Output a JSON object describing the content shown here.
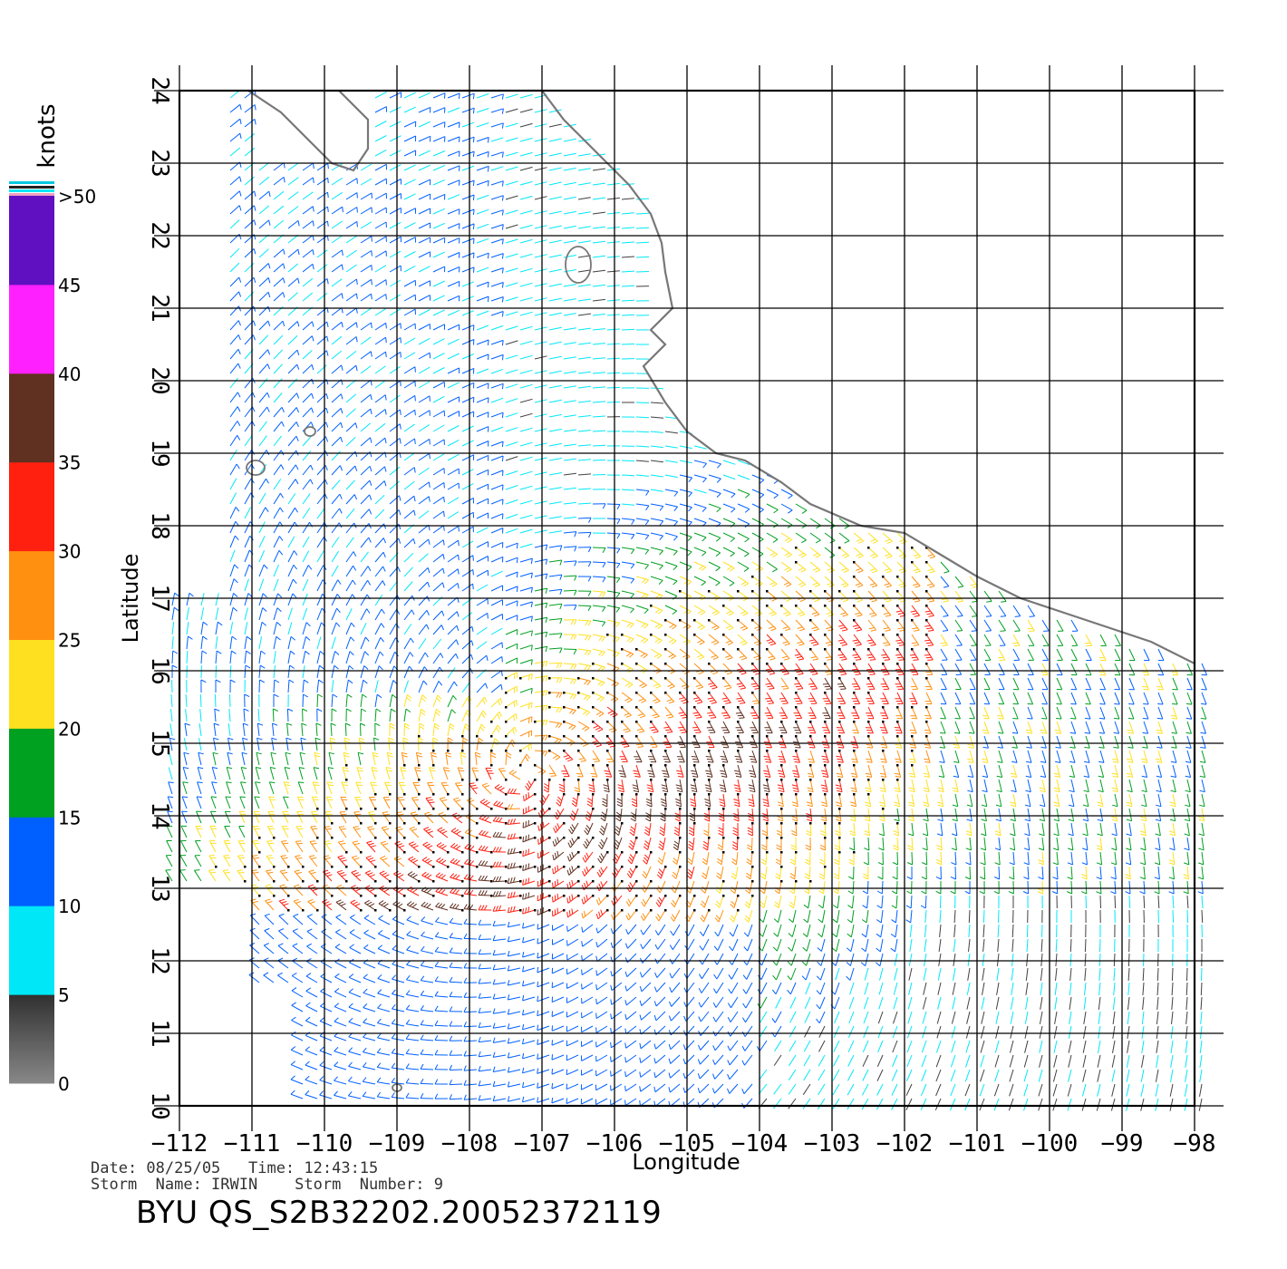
{
  "map": {
    "lon_range": [
      -112,
      -98
    ],
    "lat_range": [
      10,
      24
    ],
    "lon_ticks": [
      "-112",
      "-111",
      "-110",
      "-109",
      "-108",
      "-107",
      "-106",
      "-105",
      "-104",
      "-103",
      "-102",
      "-101",
      "-100",
      "-99",
      "-98"
    ],
    "lat_ticks": [
      "10",
      "11",
      "12",
      "13",
      "14",
      "15",
      "16",
      "17",
      "18",
      "19",
      "20",
      "21",
      "22",
      "23",
      "24"
    ],
    "xlabel": "Longitude",
    "ylabel": "Latitude",
    "grid": true,
    "coastline_color": "#777777",
    "storm_center_lon": -107.2,
    "storm_center_lat": 14.6
  },
  "legend": {
    "units": "knots",
    "labels": [
      "0",
      "5",
      "10",
      "15",
      "20",
      "25",
      "30",
      "35",
      "40",
      "45",
      ">50"
    ],
    "colors": [
      "#888888",
      "#00e8f8",
      "#0060ff",
      "#00a020",
      "#ffe020",
      "#ff9010",
      "#ff2010",
      "#603020",
      "#ff20ff",
      "#6010c0"
    ]
  },
  "info": {
    "date_line": "Date: 08/25/05   Time: 12:43:15",
    "storm_line": "Storm  Name: IRWIN    Storm  Number: 9"
  },
  "file_id": "BYU  QS_S2B32202.20052372119"
}
